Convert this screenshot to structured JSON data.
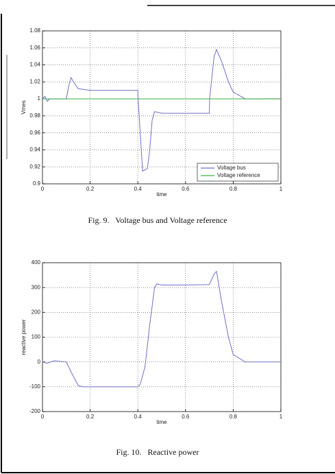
{
  "chart_data": [
    {
      "type": "line",
      "caption": "Fig. 9.   Voltage bus and Voltage reference",
      "x_label": "time",
      "y_label": "Vmes",
      "xlim": [
        0,
        1
      ],
      "xticks": [
        0,
        0.2,
        0.4,
        0.6,
        0.8,
        1
      ],
      "ylim": [
        0.9,
        1.08
      ],
      "yticks": [
        0.9,
        0.92,
        0.94,
        0.96,
        0.98,
        1,
        1.02,
        1.04,
        1.06,
        1.08
      ],
      "grid": true,
      "legend": "lower right",
      "series": [
        {
          "name": "Voltage bus",
          "color": "#6f6fc4",
          "x": [
            0,
            0.01,
            0.02,
            0.03,
            0.05,
            0.1,
            0.11,
            0.12,
            0.13,
            0.15,
            0.2,
            0.3,
            0.4,
            0.401,
            0.41,
            0.42,
            0.44,
            0.45,
            0.46,
            0.47,
            0.5,
            0.6,
            0.7,
            0.701,
            0.72,
            0.73,
            0.75,
            0.78,
            0.8,
            0.85,
            1.0
          ],
          "values": [
            1.0,
            1.003,
            0.997,
            1.0,
            1.0,
            1.0,
            1.015,
            1.025,
            1.02,
            1.012,
            1.01,
            1.01,
            1.01,
            1.0,
            0.96,
            0.915,
            0.918,
            0.94,
            0.975,
            0.985,
            0.983,
            0.983,
            0.983,
            1.0,
            1.05,
            1.058,
            1.045,
            1.02,
            1.008,
            1.0,
            1.0
          ]
        },
        {
          "name": "Voltage reference",
          "color": "#3fb23f",
          "x": [
            0,
            1
          ],
          "values": [
            1,
            1
          ]
        }
      ]
    },
    {
      "type": "line",
      "caption": "Fig. 10.   Reactive power",
      "x_label": "time",
      "y_label": "reactive power",
      "xlim": [
        0,
        1
      ],
      "xticks": [
        0,
        0.2,
        0.4,
        0.6,
        0.8,
        1
      ],
      "ylim": [
        -200,
        400
      ],
      "yticks": [
        -200,
        -100,
        0,
        100,
        200,
        300,
        400
      ],
      "grid": true,
      "series": [
        {
          "color": "#6f6fc4",
          "x": [
            0,
            0.02,
            0.05,
            0.08,
            0.1,
            0.12,
            0.15,
            0.17,
            0.2,
            0.3,
            0.4,
            0.41,
            0.43,
            0.45,
            0.47,
            0.48,
            0.5,
            0.6,
            0.7,
            0.72,
            0.73,
            0.75,
            0.78,
            0.8,
            0.85,
            0.9,
            1.0
          ],
          "values": [
            0,
            -5,
            5,
            2,
            0,
            -40,
            -95,
            -100,
            -100,
            -100,
            -100,
            -90,
            -20,
            150,
            300,
            315,
            310,
            310,
            312,
            355,
            365,
            250,
            100,
            30,
            0,
            0,
            0
          ]
        }
      ]
    }
  ]
}
